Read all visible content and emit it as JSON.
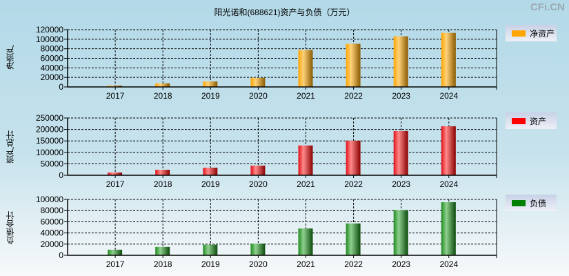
{
  "title": "阳光诺和(688621)资产与负债（万元）",
  "watermark": "CFi.CN",
  "chart_data": [
    {
      "type": "bar",
      "ylabel": "净资产",
      "legend": "净资产",
      "color": "#ffa500",
      "ylim": [
        0,
        120000
      ],
      "yticks": [
        0,
        20000,
        40000,
        60000,
        80000,
        100000,
        120000
      ],
      "categories": [
        "2017",
        "2018",
        "2019",
        "2020",
        "2021",
        "2022",
        "2023",
        "2024"
      ],
      "values": [
        2900,
        7600,
        11500,
        19100,
        77500,
        90400,
        106100,
        113300
      ]
    },
    {
      "type": "bar",
      "ylabel": "资产总计",
      "legend": "资产",
      "color": "#ff0000",
      "ylim": [
        0,
        250000
      ],
      "yticks": [
        0,
        50000,
        100000,
        150000,
        200000,
        250000
      ],
      "categories": [
        "2017",
        "2018",
        "2019",
        "2020",
        "2021",
        "2022",
        "2023",
        "2024"
      ],
      "values": [
        12000,
        24000,
        33000,
        42000,
        130000,
        151000,
        193000,
        214000
      ]
    },
    {
      "type": "bar",
      "ylabel": "负债合计",
      "legend": "负债",
      "color": "#008000",
      "ylim": [
        0,
        100000
      ],
      "yticks": [
        0,
        20000,
        40000,
        60000,
        80000,
        100000
      ],
      "categories": [
        "2017",
        "2018",
        "2019",
        "2020",
        "2021",
        "2022",
        "2023",
        "2024"
      ],
      "values": [
        10000,
        15000,
        19000,
        21000,
        48000,
        57000,
        81000,
        95000
      ]
    }
  ]
}
